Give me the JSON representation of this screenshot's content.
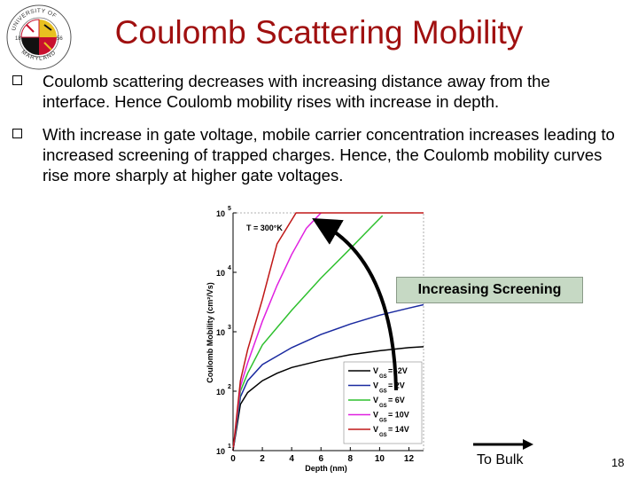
{
  "slide": {
    "title": "Coulomb Scattering Mobility",
    "page_number": "18",
    "logo": {
      "text_top": "UNIVERSITY OF",
      "text_bottom": "MARYLAND",
      "year_left": "18",
      "year_right": "56"
    },
    "bullets": [
      {
        "text": "Coulomb scattering decreases with increasing distance away from the interface. Hence Coulomb mobility rises with increase in depth."
      },
      {
        "text": "With increase in gate voltage, mobile carrier concentration increases leading to increased screening of trapped charges. Hence, the Coulomb mobility curves rise more sharply at higher gate voltages."
      }
    ],
    "annotation_box": "Increasing Screening",
    "bulk_label": "To Bulk"
  },
  "chart_data": {
    "type": "line",
    "y_scale": "log",
    "xlabel": "Depth (nm)",
    "ylabel": "Coulomb Mobility (cm²/Vs)",
    "inset_label": "T = 300°K",
    "xlim": [
      0,
      13
    ],
    "ylim": [
      10,
      100000
    ],
    "x_ticks": [
      "0",
      "2",
      "4",
      "6",
      "8",
      "10",
      "12"
    ],
    "y_ticks": [
      {
        "base": "10",
        "exp": "1",
        "value": 10
      },
      {
        "base": "10",
        "exp": "2",
        "value": 100
      },
      {
        "base": "10",
        "exp": "3",
        "value": 1000
      },
      {
        "base": "10",
        "exp": "4",
        "value": 10000
      },
      {
        "base": "10",
        "exp": "5",
        "value": 100000
      }
    ],
    "series": [
      {
        "name": "VGS = -2V",
        "color": "#000000",
        "sub": "GS",
        "eq": "= -2V",
        "points": [
          [
            0,
            10
          ],
          [
            0.5,
            60
          ],
          [
            1,
            95
          ],
          [
            2,
            150
          ],
          [
            3,
            200
          ],
          [
            4,
            250
          ],
          [
            6,
            330
          ],
          [
            8,
            410
          ],
          [
            10,
            480
          ],
          [
            12,
            540
          ],
          [
            13,
            560
          ]
        ]
      },
      {
        "name": "VGS = 2V",
        "color": "#1a2aa0",
        "sub": "GS",
        "eq": "= 2V",
        "points": [
          [
            0,
            10
          ],
          [
            0.5,
            80
          ],
          [
            1,
            150
          ],
          [
            2,
            280
          ],
          [
            4,
            540
          ],
          [
            6,
            900
          ],
          [
            8,
            1350
          ],
          [
            10,
            1900
          ],
          [
            12,
            2500
          ],
          [
            13,
            2850
          ]
        ]
      },
      {
        "name": "VGS = 6V",
        "color": "#2ec02e",
        "sub": "GS",
        "eq": "= 6V",
        "points": [
          [
            0,
            10
          ],
          [
            0.5,
            100
          ],
          [
            1,
            200
          ],
          [
            2,
            600
          ],
          [
            4,
            2300
          ],
          [
            6,
            8000
          ],
          [
            8,
            25000
          ],
          [
            9.5,
            60000
          ],
          [
            10.2,
            90000
          ]
        ]
      },
      {
        "name": "VGS = 10V",
        "color": "#e020e0",
        "sub": "GS",
        "eq": "= 10V",
        "points": [
          [
            0,
            10
          ],
          [
            0.5,
            120
          ],
          [
            1,
            300
          ],
          [
            2,
            1500
          ],
          [
            3,
            6000
          ],
          [
            4,
            20000
          ],
          [
            5,
            55000
          ],
          [
            6,
            100000
          ]
        ]
      },
      {
        "name": "VGS = 14V",
        "color": "#c01818",
        "sub": "GS",
        "eq": "= 14V",
        "points": [
          [
            0,
            10
          ],
          [
            0.5,
            150
          ],
          [
            1,
            500
          ],
          [
            2,
            3500
          ],
          [
            3,
            30000
          ],
          [
            4.3,
            100000
          ],
          [
            13,
            100000
          ]
        ]
      }
    ]
  }
}
